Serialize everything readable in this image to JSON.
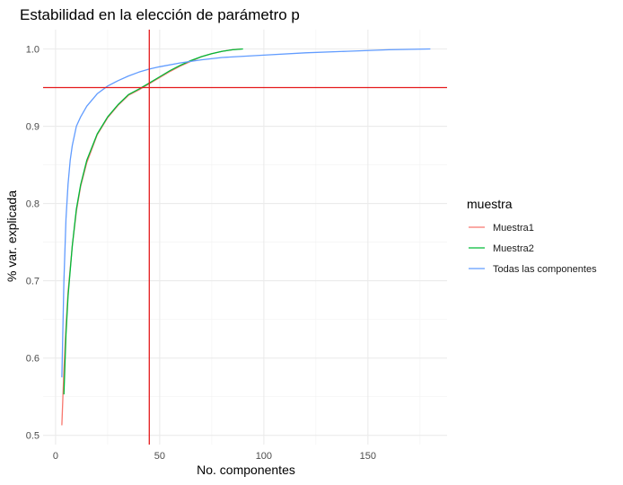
{
  "chart_data": {
    "type": "line",
    "title": "Estabilidad en la elección de parámetro p",
    "xlabel": "No. componentes",
    "ylabel": "% var. explicada",
    "xlim": [
      -6,
      188
    ],
    "ylim": [
      0.488,
      1.025
    ],
    "x_ticks": [
      0,
      50,
      100,
      150
    ],
    "x_tick_labels": [
      "0",
      "50",
      "100",
      "150"
    ],
    "y_ticks": [
      0.5,
      0.6,
      0.7,
      0.8,
      0.9,
      1.0
    ],
    "y_tick_labels": [
      "0.5",
      "0.6",
      "0.7",
      "0.8",
      "0.9",
      "1.0"
    ],
    "grid": true,
    "legend": {
      "title": "muestra",
      "position": "right",
      "entries": [
        "Muestra1",
        "Muestra2",
        "Todas las componentes"
      ]
    },
    "reference_lines": [
      {
        "orientation": "horizontal",
        "value": 0.95,
        "color": "#e41a1c"
      },
      {
        "orientation": "vertical",
        "value": 45,
        "color": "#e41a1c"
      }
    ],
    "series": [
      {
        "name": "Muestra1",
        "color": "#f8766d",
        "x": [
          3,
          4,
          5,
          6,
          8,
          10,
          12,
          15,
          20,
          25,
          30,
          35,
          40,
          45,
          50,
          55,
          60,
          65,
          70,
          75,
          80,
          85,
          89
        ],
        "y": [
          0.513,
          0.585,
          0.64,
          0.685,
          0.745,
          0.79,
          0.822,
          0.853,
          0.889,
          0.911,
          0.927,
          0.94,
          0.947,
          0.955,
          0.963,
          0.971,
          0.978,
          0.984,
          0.99,
          0.994,
          0.997,
          0.999,
          1.0
        ]
      },
      {
        "name": "Muestra2",
        "color": "#00ba38",
        "x": [
          4,
          5,
          6,
          8,
          10,
          12,
          15,
          20,
          25,
          30,
          35,
          40,
          45,
          50,
          55,
          60,
          65,
          70,
          75,
          80,
          85,
          90
        ],
        "y": [
          0.553,
          0.63,
          0.68,
          0.745,
          0.793,
          0.824,
          0.856,
          0.89,
          0.912,
          0.928,
          0.941,
          0.948,
          0.956,
          0.964,
          0.972,
          0.979,
          0.985,
          0.99,
          0.994,
          0.997,
          0.999,
          1.0
        ]
      },
      {
        "name": "Todas las componentes",
        "color": "#619cff",
        "x": [
          3,
          4,
          5,
          6,
          7,
          8,
          10,
          12,
          15,
          20,
          25,
          30,
          35,
          40,
          45,
          50,
          60,
          70,
          80,
          100,
          120,
          140,
          160,
          180
        ],
        "y": [
          0.575,
          0.7,
          0.78,
          0.825,
          0.856,
          0.875,
          0.9,
          0.912,
          0.926,
          0.942,
          0.952,
          0.959,
          0.965,
          0.97,
          0.974,
          0.977,
          0.982,
          0.986,
          0.989,
          0.992,
          0.995,
          0.997,
          0.999,
          1.0
        ]
      }
    ]
  }
}
